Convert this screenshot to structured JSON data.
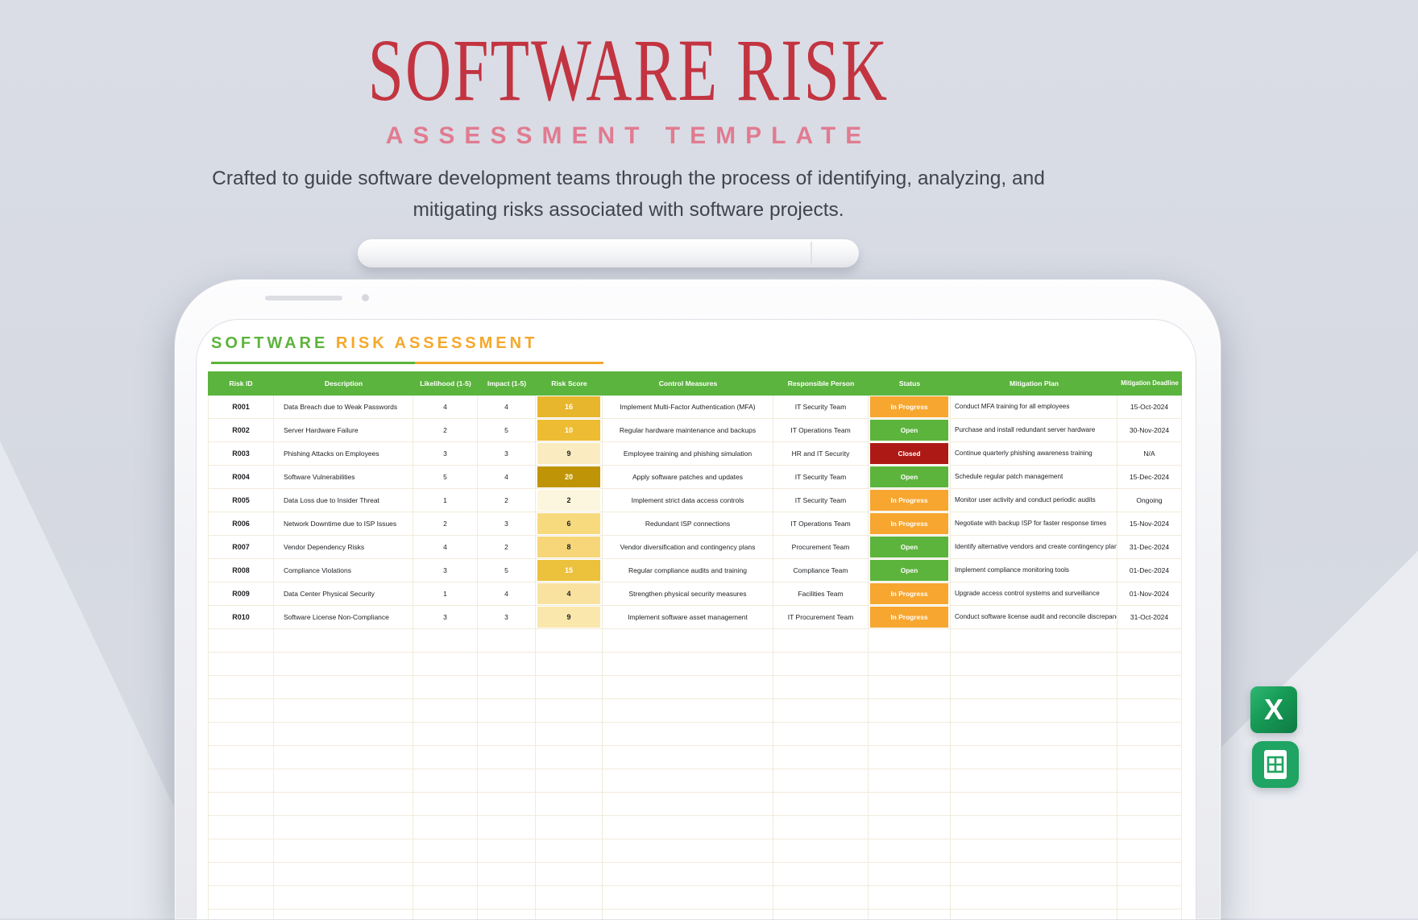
{
  "page": {
    "title_line1": "SOFTWARE RISK",
    "title_line2": "ASSESSMENT TEMPLATE",
    "description": "Crafted to guide software development teams through the process of identifying, analyzing, and mitigating risks associated with software projects."
  },
  "sheet": {
    "title_part1": "SOFTWARE",
    "title_part2": "RISK ASSESSMENT",
    "columns": [
      "Risk ID",
      "Description",
      "Likelihood (1-5)",
      "Impact (1-5)",
      "Risk Score",
      "Control Measures",
      "Responsible Person",
      "Status",
      "Mitigation Plan",
      "Mitigation Deadline"
    ],
    "status_colors": {
      "In Progress": "#f7a630",
      "Open": "#5cb43c",
      "Closed": "#ad1a15"
    },
    "empty_row_count": 13,
    "rows": [
      {
        "id": "R001",
        "description": "Data Breach due to Weak Passwords",
        "likelihood": "4",
        "impact": "4",
        "score": "16",
        "score_bg": "#e8b62c",
        "score_text": "#ffffff",
        "control": "Implement Multi-Factor Authentication (MFA)",
        "person": "IT Security Team",
        "status": "In Progress",
        "plan": "Conduct MFA training for all employees",
        "deadline": "15-Oct-2024"
      },
      {
        "id": "R002",
        "description": "Server Hardware Failure",
        "likelihood": "2",
        "impact": "5",
        "score": "10",
        "score_bg": "#edbc33",
        "score_text": "#ffffff",
        "control": "Regular hardware maintenance and backups",
        "person": "IT Operations Team",
        "status": "Open",
        "plan": "Purchase and install redundant server hardware",
        "deadline": "30-Nov-2024"
      },
      {
        "id": "R003",
        "description": "Phishing Attacks on Employees",
        "likelihood": "3",
        "impact": "3",
        "score": "9",
        "score_bg": "#faecc0",
        "score_text": "#1c1e22",
        "control": "Employee training and phishing simulation",
        "person": "HR and IT Security",
        "status": "Closed",
        "plan": "Continue quarterly phishing awareness training",
        "deadline": "N/A"
      },
      {
        "id": "R004",
        "description": "Software Vulnerabilities",
        "likelihood": "5",
        "impact": "4",
        "score": "20",
        "score_bg": "#c09407",
        "score_text": "#ffffff",
        "control": "Apply software patches and updates",
        "person": "IT Security Team",
        "status": "Open",
        "plan": "Schedule regular patch management",
        "deadline": "15-Dec-2024"
      },
      {
        "id": "R005",
        "description": "Data Loss due to Insider Threat",
        "likelihood": "1",
        "impact": "2",
        "score": "2",
        "score_bg": "#fdf6de",
        "score_text": "#1c1e22",
        "control": "Implement strict data access controls",
        "person": "IT Security Team",
        "status": "In Progress",
        "plan": "Monitor user activity and conduct periodic audits",
        "deadline": "Ongoing"
      },
      {
        "id": "R006",
        "description": "Network Downtime due to ISP Issues",
        "likelihood": "2",
        "impact": "3",
        "score": "6",
        "score_bg": "#f8da7e",
        "score_text": "#1c1e22",
        "control": "Redundant ISP connections",
        "person": "IT Operations Team",
        "status": "In Progress",
        "plan": "Negotiate with backup ISP for faster response times",
        "deadline": "15-Nov-2024"
      },
      {
        "id": "R007",
        "description": "Vendor Dependency Risks",
        "likelihood": "4",
        "impact": "2",
        "score": "8",
        "score_bg": "#f7d67a",
        "score_text": "#1c1e22",
        "control": "Vendor diversification and contingency plans",
        "person": "Procurement Team",
        "status": "Open",
        "plan": "Identify alternative vendors and create contingency plans",
        "deadline": "31-Dec-2024"
      },
      {
        "id": "R008",
        "description": "Compliance Violations",
        "likelihood": "3",
        "impact": "5",
        "score": "15",
        "score_bg": "#ecc13b",
        "score_text": "#ffffff",
        "control": "Regular compliance audits and training",
        "person": "Compliance Team",
        "status": "Open",
        "plan": "Implement compliance monitoring tools",
        "deadline": "01-Dec-2024"
      },
      {
        "id": "R009",
        "description": "Data Center Physical Security",
        "likelihood": "1",
        "impact": "4",
        "score": "4",
        "score_bg": "#f9e2a0",
        "score_text": "#1c1e22",
        "control": "Strengthen physical security measures",
        "person": "Facilities Team",
        "status": "In Progress",
        "plan": "Upgrade access control systems and surveillance",
        "deadline": "01-Nov-2024"
      },
      {
        "id": "R010",
        "description": "Software License Non-Compliance",
        "likelihood": "3",
        "impact": "3",
        "score": "9",
        "score_bg": "#f9e7ac",
        "score_text": "#1c1e22",
        "control": "Implement software asset management",
        "person": "IT Procurement Team",
        "status": "In Progress",
        "plan": "Conduct software license audit and reconcile discrepancies",
        "deadline": "31-Oct-2024"
      }
    ]
  },
  "icons": {
    "excel_letter": "X"
  }
}
